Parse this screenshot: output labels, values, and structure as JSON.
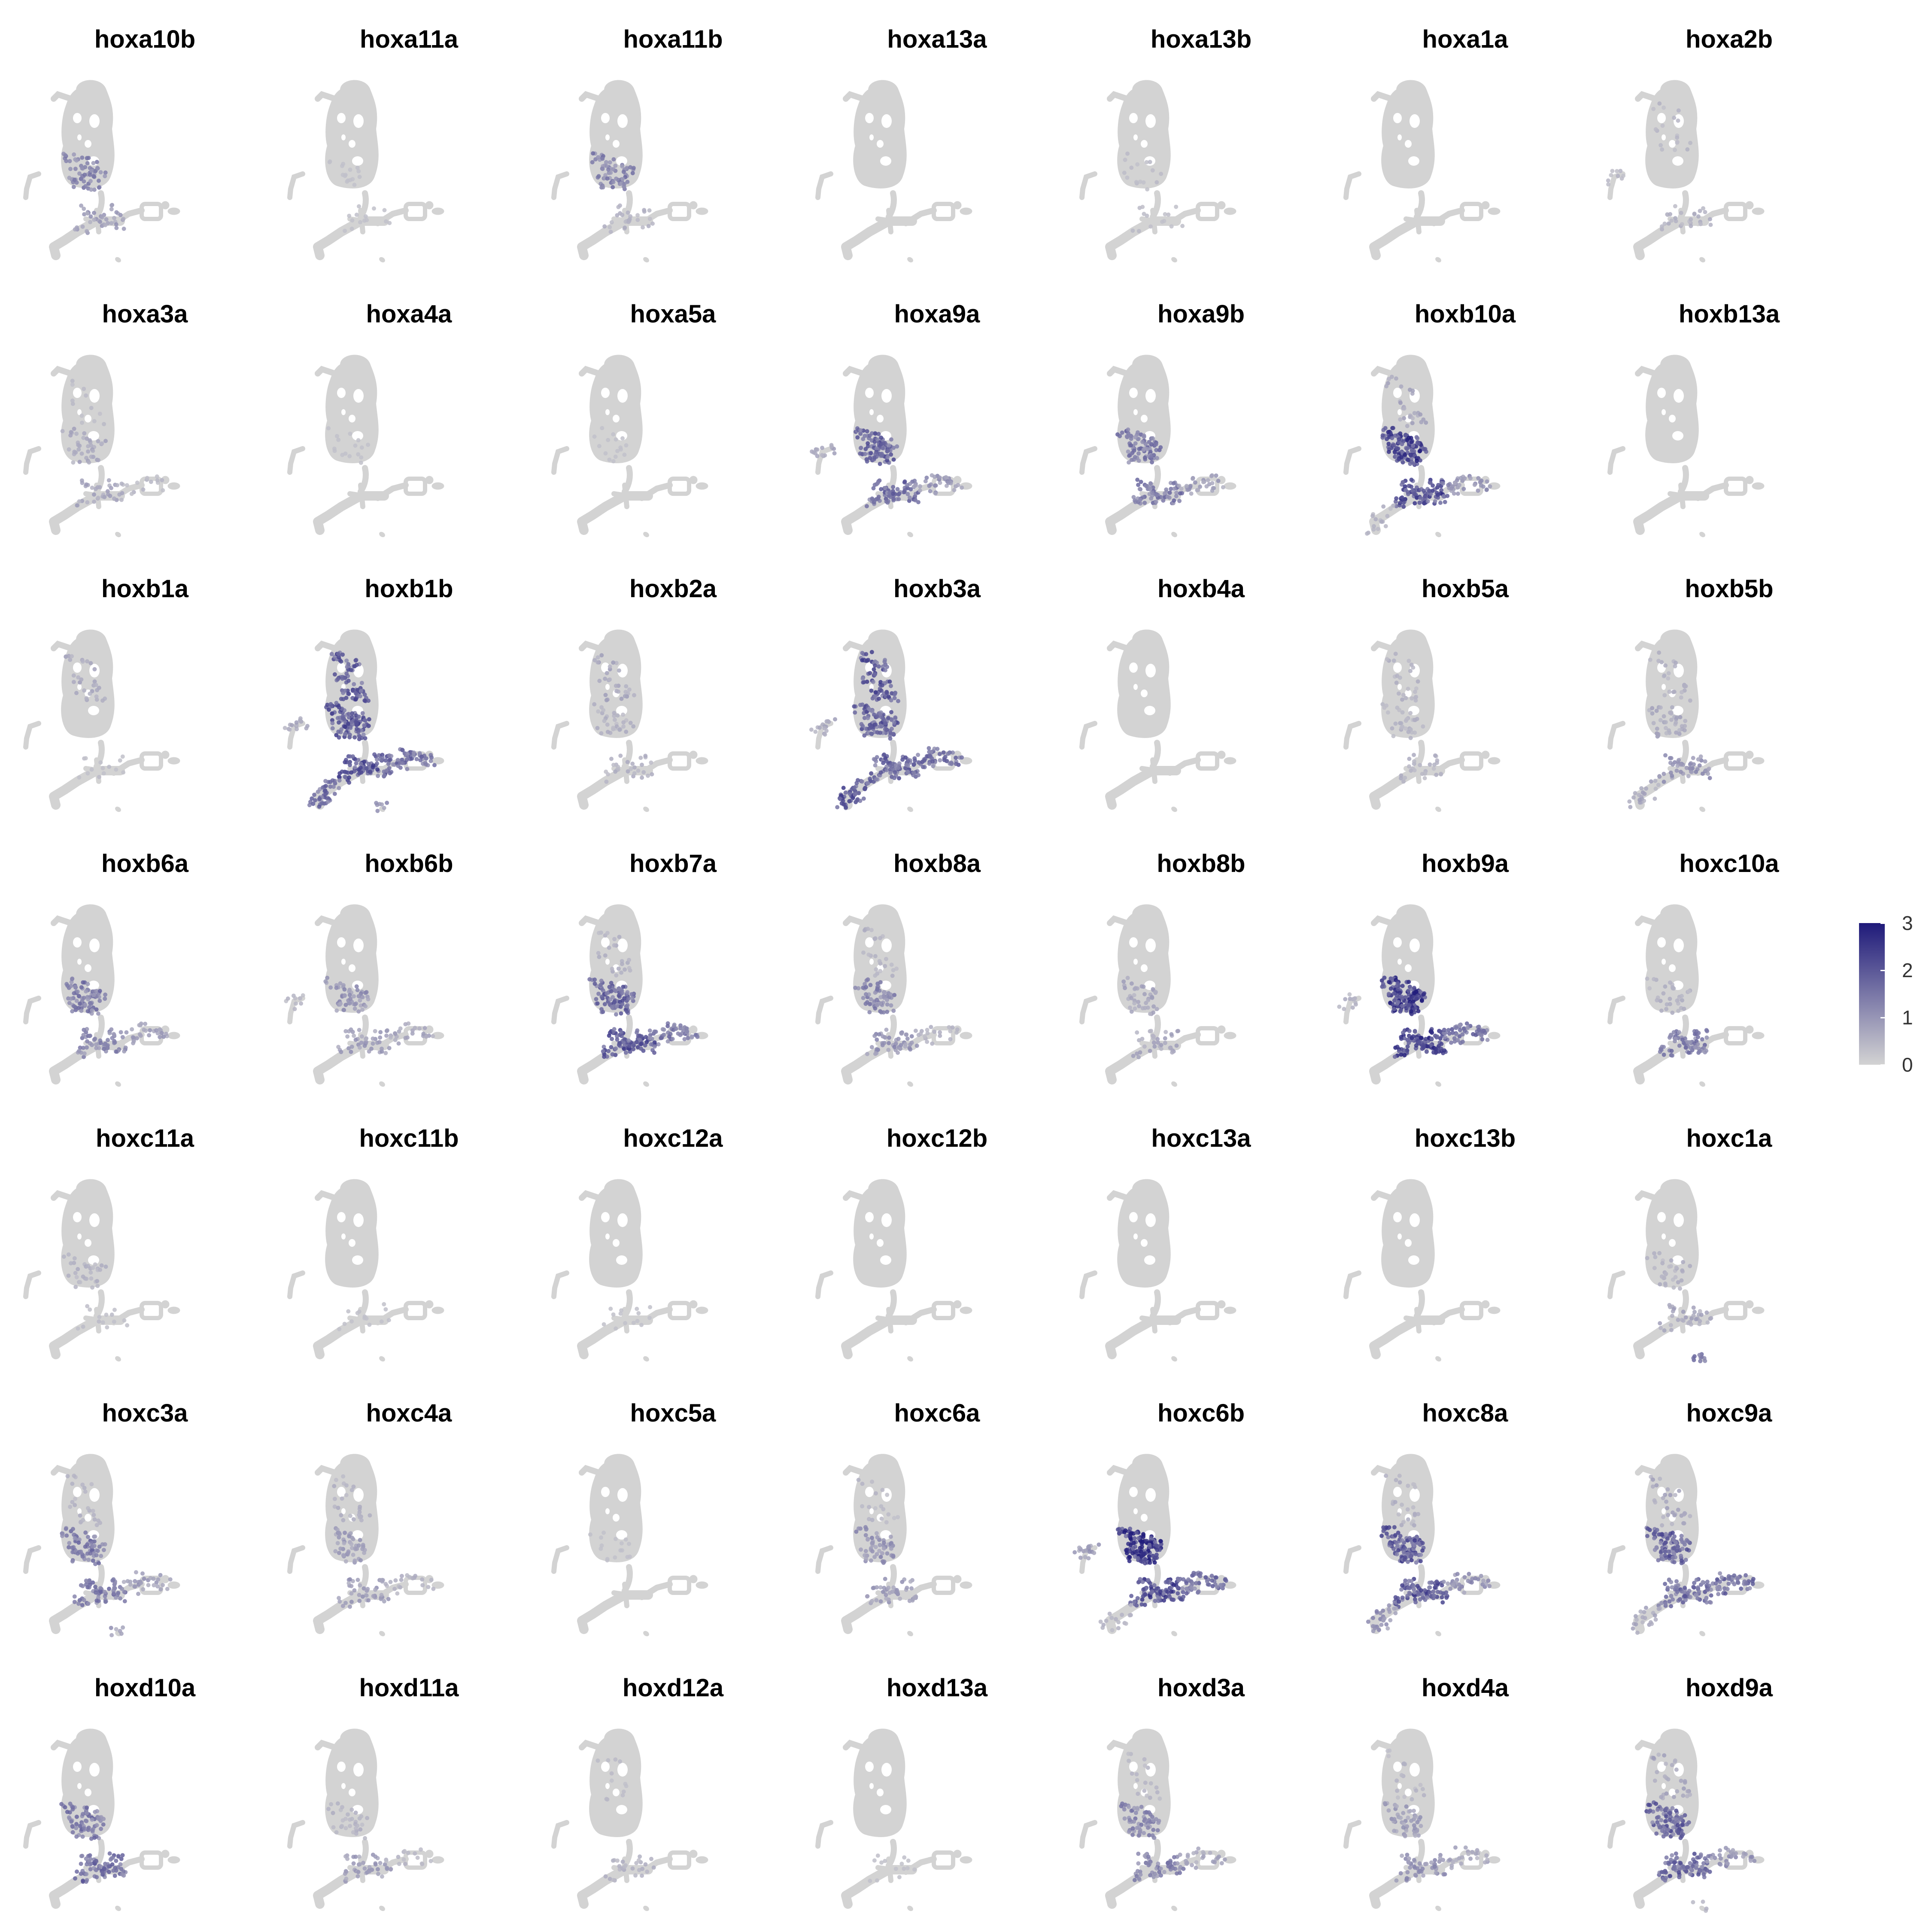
{
  "chart_data": {
    "type": "scatter",
    "subtype": "UMAP feature-plot grid",
    "grid": false,
    "ncol": 7,
    "nrow": 7,
    "legend": {
      "placement": "right",
      "ticks": [
        0,
        1,
        2,
        3
      ],
      "range": [
        0,
        3
      ],
      "low_color": "#d3d3d3",
      "high_color": "#1f1a7a"
    },
    "colors": {
      "background_points": "#d3d3d3",
      "expression_high": "#1f1a7a",
      "expression_mid": "#7b68c0"
    },
    "panels": [
      {
        "title": "hoxa10b",
        "regions": {
          "body_lower": 1.4,
          "junction": 1.0
        }
      },
      {
        "title": "hoxa11a",
        "regions": {
          "body_lower": 0.3,
          "junction": 0.3
        }
      },
      {
        "title": "hoxa11b",
        "regions": {
          "body_lower": 1.5,
          "junction": 0.6
        }
      },
      {
        "title": "hoxa13a",
        "regions": {}
      },
      {
        "title": "hoxa13b",
        "regions": {
          "body_lower": 0.4,
          "junction": 0.4
        }
      },
      {
        "title": "hoxa1a",
        "regions": {}
      },
      {
        "title": "hoxa2b",
        "regions": {
          "body_mid": 0.5,
          "junction": 0.6,
          "arm": 0.5
        }
      },
      {
        "title": "hoxa3a",
        "regions": {
          "body_lower": 0.8,
          "body_mid": 0.4,
          "junction": 0.8,
          "branch_right": 0.5
        }
      },
      {
        "title": "hoxa4a",
        "regions": {
          "body_lower": 0.2
        }
      },
      {
        "title": "hoxa5a",
        "regions": {
          "body_lower": 0.2
        }
      },
      {
        "title": "hoxa9a",
        "regions": {
          "body_lower": 2.0,
          "junction": 1.8,
          "branch_right": 1.2,
          "arm": 0.8
        }
      },
      {
        "title": "hoxa9b",
        "regions": {
          "body_lower": 1.6,
          "junction": 1.6,
          "branch_right": 1.0
        }
      },
      {
        "title": "hoxb10a",
        "regions": {
          "body_lower": 2.6,
          "body_mid": 0.8,
          "junction": 2.4,
          "branch_right": 1.2,
          "tail_left": 0.6
        }
      },
      {
        "title": "hoxb13a",
        "regions": {}
      },
      {
        "title": "hoxb1a",
        "regions": {
          "body_mid": 0.8,
          "junction": 0.4
        }
      },
      {
        "title": "hoxb1b",
        "regions": {
          "body_mid": 2.2,
          "body_lower": 2.2,
          "junction": 2.2,
          "branch_right": 1.8,
          "tail_left": 1.8,
          "arm": 0.8,
          "isolated": 1.2
        }
      },
      {
        "title": "hoxb2a",
        "regions": {
          "body_mid": 0.8,
          "body_lower": 0.6,
          "junction": 0.6
        }
      },
      {
        "title": "hoxb3a",
        "regions": {
          "body_mid": 2.2,
          "body_lower": 2.0,
          "junction": 2.0,
          "branch_right": 1.8,
          "tail_left": 2.2,
          "arm": 0.8
        }
      },
      {
        "title": "hoxb4a",
        "regions": {}
      },
      {
        "title": "hoxb5a",
        "regions": {
          "body_mid": 0.6,
          "body_lower": 0.6,
          "junction": 0.6
        }
      },
      {
        "title": "hoxb5b",
        "regions": {
          "body_mid": 0.6,
          "body_lower": 0.8,
          "junction": 1.2,
          "tail_left": 0.8
        }
      },
      {
        "title": "hoxb6a",
        "regions": {
          "body_lower": 1.6,
          "junction": 1.4,
          "branch_right": 1.0
        }
      },
      {
        "title": "hoxb6b",
        "regions": {
          "body_lower": 1.2,
          "junction": 1.0,
          "branch_right": 0.8,
          "arm": 0.5
        }
      },
      {
        "title": "hoxb7a",
        "regions": {
          "body_lower": 2.0,
          "body_mid": 0.6,
          "junction": 2.2,
          "branch_right": 1.6
        }
      },
      {
        "title": "hoxb8a",
        "regions": {
          "body_lower": 1.4,
          "body_mid": 0.6,
          "junction": 1.2,
          "branch_right": 0.6
        }
      },
      {
        "title": "hoxb8b",
        "regions": {
          "body_lower": 0.8,
          "junction": 0.8
        }
      },
      {
        "title": "hoxb9a",
        "regions": {
          "body_lower": 2.8,
          "junction": 2.6,
          "branch_right": 1.8,
          "arm": 0.6
        }
      },
      {
        "title": "hoxc10a",
        "regions": {
          "body_lower": 0.6,
          "junction": 1.6
        }
      },
      {
        "title": "hoxc11a",
        "regions": {
          "body_lower": 0.6,
          "junction": 0.4
        }
      },
      {
        "title": "hoxc11b",
        "regions": {
          "junction": 0.3
        }
      },
      {
        "title": "hoxc12a",
        "regions": {
          "junction": 0.2
        }
      },
      {
        "title": "hoxc12b",
        "regions": {}
      },
      {
        "title": "hoxc13a",
        "regions": {}
      },
      {
        "title": "hoxc13b",
        "regions": {}
      },
      {
        "title": "hoxc1a",
        "regions": {
          "body_lower": 0.6,
          "junction": 0.8,
          "isolated": 1.6
        }
      },
      {
        "title": "hoxc3a",
        "regions": {
          "body_lower": 1.6,
          "body_mid": 0.6,
          "junction": 1.6,
          "branch_right": 1.0,
          "isolated": 1.0
        }
      },
      {
        "title": "hoxc4a",
        "regions": {
          "body_lower": 1.0,
          "body_mid": 0.6,
          "junction": 1.0,
          "branch_right": 0.6
        }
      },
      {
        "title": "hoxc5a",
        "regions": {
          "body_lower": 0.3
        }
      },
      {
        "title": "hoxc6a",
        "regions": {
          "body_lower": 1.2,
          "body_mid": 0.5,
          "junction": 1.0
        }
      },
      {
        "title": "hoxc6b",
        "regions": {
          "body_lower": 2.8,
          "junction": 2.4,
          "branch_right": 1.8,
          "tail_left": 0.6,
          "arm": 1.0
        }
      },
      {
        "title": "hoxc8a",
        "regions": {
          "body_lower": 2.2,
          "body_mid": 0.6,
          "junction": 2.2,
          "branch_right": 1.2,
          "tail_left": 1.2
        }
      },
      {
        "title": "hoxc9a",
        "regions": {
          "body_lower": 2.0,
          "body_mid": 0.8,
          "junction": 1.8,
          "branch_right": 1.8,
          "tail_left": 0.8
        }
      },
      {
        "title": "hoxd10a",
        "regions": {
          "body_lower": 1.6,
          "junction": 1.8
        }
      },
      {
        "title": "hoxd11a",
        "regions": {
          "body_lower": 0.6,
          "junction": 1.0,
          "branch_right": 0.5
        }
      },
      {
        "title": "hoxd12a",
        "regions": {
          "body_mid": 0.4,
          "junction": 0.6
        }
      },
      {
        "title": "hoxd13a",
        "regions": {
          "junction": 0.3
        }
      },
      {
        "title": "hoxd3a",
        "regions": {
          "body_lower": 1.4,
          "body_mid": 0.5,
          "junction": 1.4,
          "branch_right": 0.8
        }
      },
      {
        "title": "hoxd4a",
        "regions": {
          "body_lower": 1.0,
          "body_mid": 0.5,
          "junction": 1.2,
          "branch_right": 0.8
        }
      },
      {
        "title": "hoxd9a",
        "regions": {
          "body_lower": 2.0,
          "body_mid": 0.8,
          "junction": 2.0,
          "branch_right": 1.2,
          "isolated": 0.6
        }
      }
    ]
  }
}
